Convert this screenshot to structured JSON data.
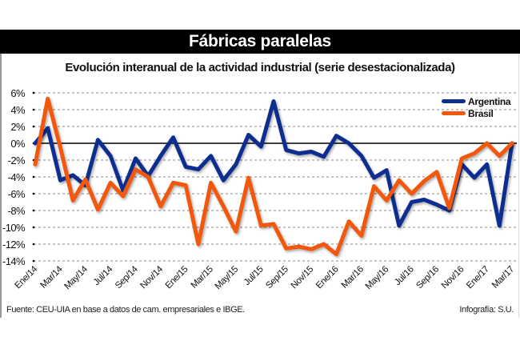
{
  "header": {
    "title": "Fábricas paralelas",
    "subtitle": "Evolución interanual de la actividad industrial (serie desestacionalizada)"
  },
  "footer": {
    "source": "Fuente: CEU-UIA en base a datos de cam. empresariales e IBGE.",
    "credit": "Infografía: S.U."
  },
  "colors": {
    "argentina": "#0f2f8f",
    "brasil": "#f2580f",
    "title_bg": "#000000"
  },
  "chart_data": {
    "type": "line",
    "title": "Evolución interanual de la actividad industrial (serie desestacionalizada)",
    "xlabel": "",
    "ylabel": "",
    "ylim": [
      -14,
      6
    ],
    "yticks": [
      6,
      4,
      2,
      0,
      -2,
      -4,
      -6,
      -8,
      -10,
      -12,
      -14
    ],
    "ytick_labels": [
      "6%",
      "4%",
      "2%",
      "0%",
      "-2%",
      "-4%",
      "-6%",
      "-8%",
      "-10%",
      "-12%",
      "-14%"
    ],
    "grid": "horizontal dashed",
    "legend": "top-right",
    "x_tick_labels": [
      "Ene/14",
      "Mar/14",
      "May/14",
      "Jul/14",
      "Sep/14",
      "Nov/14",
      "Ene/15",
      "Mar/15",
      "May/15",
      "Jul/15",
      "Sep/15",
      "Nov/15",
      "Ene/16",
      "Mar/16",
      "May/16",
      "Jul/16",
      "Sep/16",
      "Nov/16",
      "Ene/17",
      "Mar/17"
    ],
    "months": 39,
    "series": [
      {
        "name": "Argentina",
        "values": [
          0.0,
          1.8,
          -4.4,
          -3.8,
          -5.0,
          0.4,
          -1.5,
          -5.6,
          -1.8,
          -3.9,
          -1.5,
          0.7,
          -2.8,
          -3.1,
          -1.5,
          -4.4,
          -2.5,
          1.0,
          -0.4,
          5.0,
          -0.8,
          -1.2,
          -1.0,
          -1.6,
          0.9,
          0.0,
          -1.5,
          -4.1,
          -3.2,
          -9.8,
          -7.0,
          -6.7,
          -7.3,
          -8.0,
          -2.5,
          -4.1,
          -2.5,
          -9.8,
          0.0
        ]
      },
      {
        "name": "Brasil",
        "values": [
          -2.5,
          5.3,
          -0.5,
          -6.8,
          -4.3,
          -7.9,
          -4.7,
          -6.3,
          -3.1,
          -4.0,
          -7.5,
          -4.7,
          -5.0,
          -12.0,
          -4.7,
          -7.5,
          -10.5,
          -4.1,
          -9.8,
          -9.6,
          -12.5,
          -12.3,
          -12.6,
          -12.0,
          -13.2,
          -9.3,
          -11.0,
          -5.1,
          -6.8,
          -4.4,
          -6.0,
          -4.5,
          -3.4,
          -7.7,
          -1.8,
          -1.2,
          0.0,
          -1.5,
          0.0
        ]
      }
    ]
  }
}
